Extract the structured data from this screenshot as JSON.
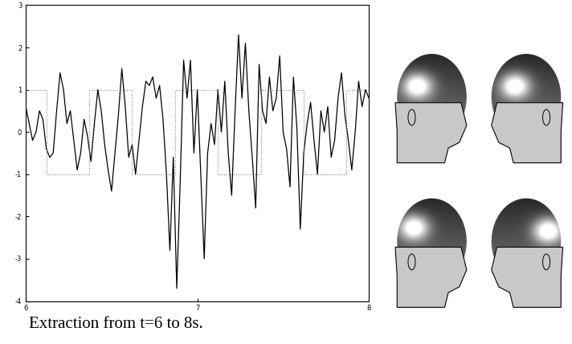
{
  "chart_data": {
    "type": "line",
    "caption": "Extraction from t=6 to 8s.",
    "xlim": [
      6,
      8
    ],
    "xticks": [
      6,
      7,
      8
    ],
    "ylim": [
      -4,
      3
    ],
    "yticks": [
      -4,
      -3,
      -2,
      -1,
      0,
      1,
      2,
      3
    ],
    "grid": false,
    "series": [
      {
        "color": "#000000",
        "line_style": "solid",
        "x": [
          6.0,
          6.02,
          6.04,
          6.06,
          6.08,
          6.1,
          6.12,
          6.14,
          6.16,
          6.18,
          6.2,
          6.22,
          6.24,
          6.26,
          6.28,
          6.3,
          6.32,
          6.34,
          6.36,
          6.38,
          6.4,
          6.42,
          6.44,
          6.46,
          6.48,
          6.5,
          6.52,
          6.54,
          6.56,
          6.58,
          6.6,
          6.62,
          6.64,
          6.66,
          6.68,
          6.7,
          6.72,
          6.74,
          6.76,
          6.78,
          6.8,
          6.82,
          6.84,
          6.86,
          6.88,
          6.9,
          6.92,
          6.94,
          6.96,
          6.98,
          7.0,
          7.02,
          7.04,
          7.06,
          7.08,
          7.1,
          7.12,
          7.14,
          7.16,
          7.18,
          7.2,
          7.22,
          7.24,
          7.26,
          7.28,
          7.3,
          7.32,
          7.34,
          7.36,
          7.38,
          7.4,
          7.42,
          7.44,
          7.46,
          7.48,
          7.5,
          7.52,
          7.54,
          7.56,
          7.58,
          7.6,
          7.62,
          7.64,
          7.66,
          7.68,
          7.7,
          7.72,
          7.74,
          7.76,
          7.78,
          7.8,
          7.82,
          7.84,
          7.86,
          7.88,
          7.9,
          7.92,
          7.94,
          7.96,
          7.98,
          8.0
        ],
        "values": [
          0.6,
          0.2,
          -0.2,
          0.0,
          0.5,
          0.3,
          -0.4,
          -0.6,
          -0.5,
          0.5,
          1.4,
          1.0,
          0.2,
          0.5,
          -0.2,
          -0.9,
          -0.5,
          0.3,
          -0.1,
          -0.7,
          0.2,
          1.0,
          0.5,
          -0.3,
          -0.9,
          -1.4,
          -0.5,
          0.4,
          1.5,
          0.6,
          -0.6,
          -0.3,
          -1.0,
          -0.2,
          0.6,
          1.2,
          1.1,
          1.3,
          0.8,
          1.1,
          0.3,
          -1.0,
          -2.8,
          -0.6,
          -3.7,
          -1.2,
          1.7,
          0.8,
          1.7,
          -0.5,
          1.0,
          -1.0,
          -3.0,
          -0.5,
          0.2,
          -0.3,
          1.0,
          0.0,
          1.2,
          -0.5,
          -1.5,
          0.5,
          2.3,
          0.8,
          2.1,
          0.5,
          -0.6,
          -1.8,
          1.6,
          0.5,
          0.2,
          1.3,
          0.5,
          0.8,
          1.8,
          0.0,
          -0.4,
          -1.3,
          1.3,
          0.1,
          -2.3,
          -0.5,
          0.2,
          0.7,
          -0.2,
          -1.0,
          0.5,
          0.0,
          0.6,
          -0.6,
          -0.2,
          0.8,
          1.4,
          0.4,
          -0.2,
          -0.9,
          0.0,
          1.2,
          0.6,
          1.0,
          0.8
        ]
      },
      {
        "color": "#808080",
        "line_style": "dotted",
        "x": [
          6,
          6.12,
          6.12,
          6.37,
          6.37,
          6.62,
          6.62,
          6.87,
          6.87,
          7.12,
          7.12,
          7.37,
          7.37,
          7.62,
          7.62,
          7.87,
          7.87,
          8
        ],
        "values": [
          1,
          1,
          -1,
          -1,
          1,
          1,
          -1,
          -1,
          1,
          1,
          -1,
          -1,
          1,
          1,
          -1,
          -1,
          1,
          1
        ]
      }
    ]
  }
}
